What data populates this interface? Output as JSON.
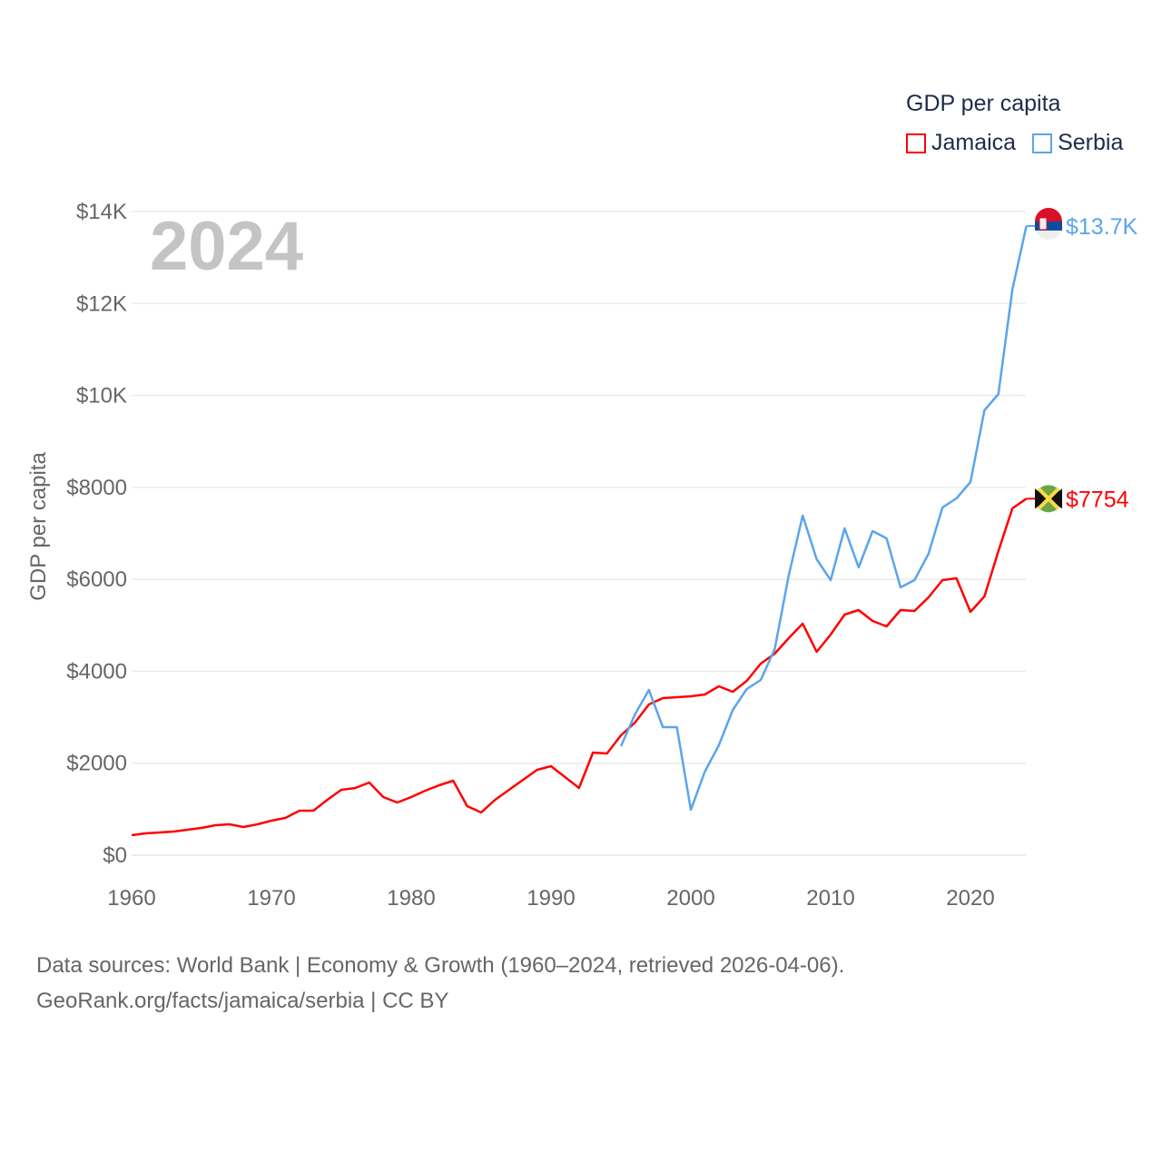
{
  "chart_data": {
    "type": "line",
    "title": "GDP per capita",
    "ylabel": "GDP per capita",
    "xlabel": "",
    "year_label": "2024",
    "xlim": [
      1960,
      2024
    ],
    "ylim": [
      0,
      14000
    ],
    "x_ticks": [
      "1960",
      "1970",
      "1980",
      "1990",
      "2000",
      "2010",
      "2020"
    ],
    "y_ticks": [
      "$0",
      "$2000",
      "$4000",
      "$6000",
      "$8000",
      "$10K",
      "$12K",
      "$14K"
    ],
    "grid": true,
    "legend_position": "top-right",
    "series": [
      {
        "name": "Jamaica",
        "color": "#ff0000",
        "end_label": "$7754",
        "start_year": 1960,
        "values": [
          434,
          474,
          494,
          513,
          553,
          592,
          652,
          671,
          612,
          671,
          750,
          810,
          968,
          968,
          1205,
          1422,
          1461,
          1580,
          1264,
          1145,
          1264,
          1402,
          1520,
          1619,
          1066,
          928,
          1205,
          1422,
          1639,
          1856,
          1935,
          1698,
          1461,
          2231,
          2212,
          2607,
          2883,
          3278,
          3416,
          3436,
          3456,
          3495,
          3673,
          3554,
          3791,
          4167,
          4384,
          4720,
          5036,
          4423,
          4798,
          5233,
          5332,
          5095,
          4976,
          5332,
          5312,
          5608,
          5983,
          6023,
          5292,
          5628,
          6615,
          7543,
          7754
        ]
      },
      {
        "name": "Serbia",
        "color": "#5aa5ec",
        "end_label": "$13.7K",
        "start_year": 1995,
        "values": [
          2370,
          3061,
          3594,
          2784,
          2784,
          987,
          1817,
          2389,
          3160,
          3614,
          3811,
          4483,
          6082,
          7385,
          6438,
          5983,
          7109,
          6260,
          7050,
          6892,
          5825,
          5983,
          6556,
          7563,
          7761,
          8116,
          9676,
          10032,
          12303,
          13685
        ]
      }
    ]
  },
  "footer": {
    "line1": "Data sources: World Bank | Economy & Growth (1960–2024, retrieved 2026-04-06).",
    "line2": "GeoRank.org/facts/jamaica/serbia | CC BY"
  }
}
